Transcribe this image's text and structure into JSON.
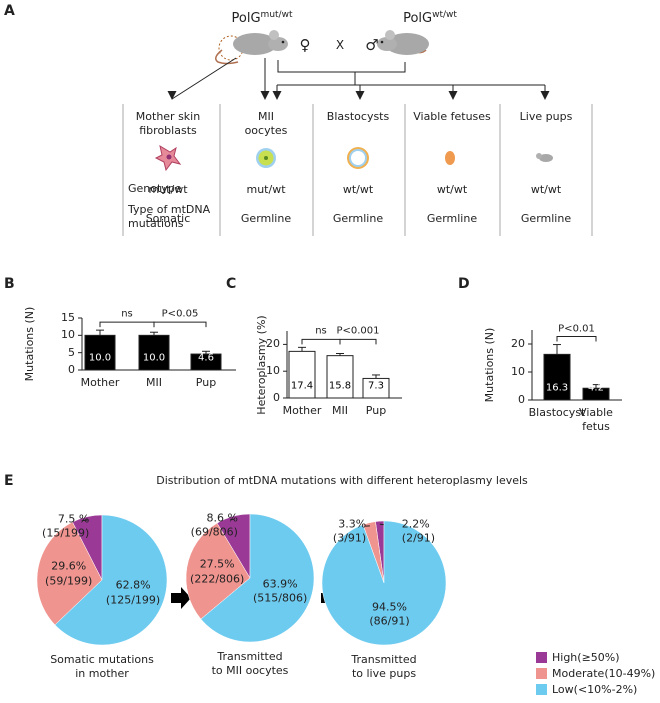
{
  "panel_a": {
    "label": "A",
    "parents": [
      {
        "name": "PolG",
        "genotype": "mut/wt"
      },
      {
        "name": "PolG",
        "genotype": "wt/wt"
      }
    ],
    "female": "♀",
    "cross": "X",
    "male": "♂",
    "row_labels": [
      "Genotype",
      "Type of mtDNA\nmutations"
    ],
    "columns": [
      {
        "title": "Mother skin\nfibroblasts",
        "genotype": "mut/wt",
        "mutation_type": "Somatic"
      },
      {
        "title": "MII\noocytes",
        "genotype": "mut/wt",
        "mutation_type": "Germline"
      },
      {
        "title": "Blastocysts",
        "genotype": "wt/wt",
        "mutation_type": "Germline"
      },
      {
        "title": "Viable fetuses",
        "genotype": "wt/wt",
        "mutation_type": "Germline"
      },
      {
        "title": "Live pups",
        "genotype": "wt/wt",
        "mutation_type": "Germline"
      }
    ]
  },
  "chart_data": [
    {
      "type": "bar",
      "label": "B",
      "ylabel": "Mutations (N)",
      "categories": [
        "Mother",
        "MII",
        "Pup"
      ],
      "values": [
        10.0,
        10.0,
        4.6
      ],
      "value_labels": [
        "10.0",
        "10.0",
        "4.6"
      ],
      "errors": [
        1.5,
        0.9,
        0.8
      ],
      "color": "#000000",
      "ylim": [
        0,
        15
      ],
      "yticks": [
        0,
        5,
        10,
        15
      ],
      "brackets": [
        "ns",
        "P<0.05"
      ]
    },
    {
      "type": "bar",
      "label": "C",
      "ylabel": "Heteroplasmy (%)",
      "categories": [
        "Mother",
        "MII",
        "Pup"
      ],
      "values": [
        17.4,
        15.8,
        7.3
      ],
      "errors": [
        1.5,
        0.8,
        1.3
      ],
      "color": "#ffffff",
      "ylim": [
        0,
        25
      ],
      "yticks": [
        0,
        10,
        20
      ],
      "brackets": [
        "ns",
        "P<0.001"
      ]
    },
    {
      "type": "bar",
      "label": "D",
      "ylabel": "Mutations (N)",
      "categories": [
        "Blastocyst",
        "Viable\nfetus"
      ],
      "values": [
        16.3,
        4.2
      ],
      "errors": [
        3.5,
        1.3
      ],
      "color": "#000000",
      "ylim": [
        0,
        25
      ],
      "yticks": [
        0,
        10,
        20
      ],
      "brackets": [
        "P<0.01"
      ]
    },
    {
      "type": "pie",
      "caption": "Somatic mutations\nin mother",
      "values": [
        7.5,
        29.6,
        62.8
      ],
      "value_labels": [
        "7.5 %\n(15/199)",
        "29.6%\n(59/199)",
        "62.8%\n(125/199)"
      ],
      "colors": [
        "#9b3a96",
        "#f0948f",
        "#6ecbf0"
      ]
    },
    {
      "type": "pie",
      "caption": "Transmitted\nto MII oocytes",
      "values": [
        8.6,
        27.5,
        63.9
      ],
      "value_labels": [
        "8.6 %\n(69/806)",
        "27.5%\n(222/806)",
        "63.9%\n(515/806)"
      ],
      "colors": [
        "#9b3a96",
        "#f0948f",
        "#6ecbf0"
      ]
    },
    {
      "type": "pie",
      "caption": "Transmitted\nto live pups",
      "values": [
        2.2,
        3.3,
        94.5
      ],
      "value_labels": [
        "2.2%\n(2/91)",
        "3.3%\n(3/91)",
        "94.5%\n(86/91)"
      ],
      "colors": [
        "#9b3a96",
        "#f0948f",
        "#6ecbf0"
      ]
    }
  ],
  "panel_e": {
    "label": "E",
    "title": "Distribution of mtDNA mutations with different heteroplasmy levels",
    "legend": [
      {
        "name": "High(≥50%)",
        "color": "#9b3a96"
      },
      {
        "name": "Moderate(10-49%)",
        "color": "#f0948f"
      },
      {
        "name": "Low(<10%-2%)",
        "color": "#6ecbf0"
      }
    ]
  }
}
